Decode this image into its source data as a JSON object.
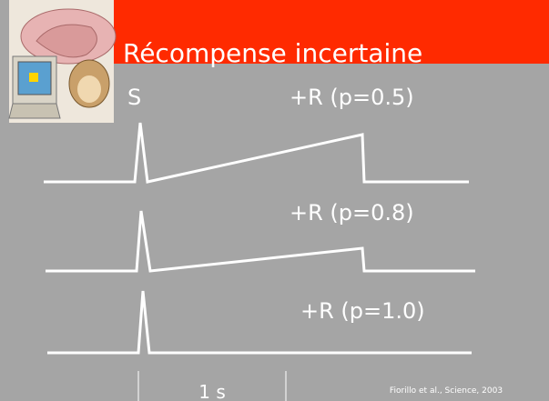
{
  "slide": {
    "title": "Récompense incertaine",
    "stimulus_label": "S",
    "traces": [
      {
        "label": "+R (p=0.5)"
      },
      {
        "label": "+R (p=0.8)"
      },
      {
        "label": "+R (p=1.0)"
      }
    ],
    "scale_label": "1 s",
    "citation": "Fiorillo et al., Science, 2003"
  }
}
